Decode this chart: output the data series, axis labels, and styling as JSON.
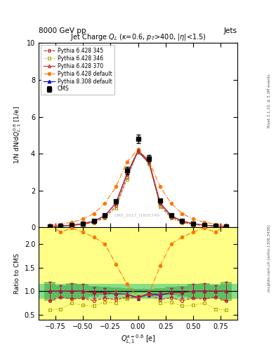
{
  "title": "Jet Charge $Q_L$ ($\\kappa$=0.6, $p_T$>400, |$\\eta$|<1.5)",
  "xlabel": "$Q_{L,1}^{\\kappa=0.6}$ [e]",
  "ylabel_main": "1/N dN/d$Q_{L,1}^{0.6}$ [1/e]",
  "ylabel_ratio": "Ratio to CMS",
  "header_left": "8000 GeV pp",
  "header_right": "Jets",
  "watermark": "mcplots.cern.ch [arXiv:1306.3436]",
  "rivet_label": "Rivet 3.1.10, ≥ 3.3M events",
  "analysis_id": "CMS_2017_I1605749",
  "x_centers": [
    -0.8,
    -0.7,
    -0.6,
    -0.5,
    -0.4,
    -0.3,
    -0.2,
    -0.1,
    0.0,
    0.1,
    0.2,
    0.3,
    0.4,
    0.5,
    0.6,
    0.7,
    0.8
  ],
  "cms_y": [
    0.05,
    0.08,
    0.12,
    0.2,
    0.35,
    0.65,
    1.4,
    3.1,
    4.8,
    3.75,
    1.45,
    0.65,
    0.35,
    0.2,
    0.12,
    0.08,
    0.05
  ],
  "cms_yerr": [
    0.01,
    0.01,
    0.02,
    0.03,
    0.04,
    0.06,
    0.1,
    0.18,
    0.22,
    0.18,
    0.1,
    0.06,
    0.04,
    0.03,
    0.02,
    0.01,
    0.01
  ],
  "p345_y": [
    0.04,
    0.07,
    0.1,
    0.17,
    0.28,
    0.55,
    1.15,
    2.7,
    4.15,
    3.5,
    1.2,
    0.56,
    0.28,
    0.17,
    0.1,
    0.07,
    0.04
  ],
  "p346_y": [
    0.03,
    0.05,
    0.09,
    0.14,
    0.24,
    0.5,
    1.05,
    2.6,
    4.1,
    3.42,
    1.1,
    0.5,
    0.24,
    0.14,
    0.09,
    0.05,
    0.03
  ],
  "p370_y": [
    0.05,
    0.08,
    0.12,
    0.2,
    0.34,
    0.63,
    1.32,
    2.9,
    4.18,
    3.58,
    1.35,
    0.63,
    0.34,
    0.2,
    0.12,
    0.08,
    0.05
  ],
  "pdef_y": [
    0.12,
    0.18,
    0.28,
    0.45,
    0.75,
    1.3,
    2.2,
    3.55,
    4.25,
    3.58,
    2.22,
    1.3,
    0.75,
    0.45,
    0.28,
    0.18,
    0.12
  ],
  "p8def_y": [
    0.05,
    0.08,
    0.12,
    0.2,
    0.34,
    0.63,
    1.32,
    2.9,
    4.1,
    3.5,
    1.32,
    0.63,
    0.34,
    0.2,
    0.12,
    0.08,
    0.05
  ],
  "color_345": "#cc2222",
  "color_346": "#aaaa00",
  "color_370": "#cc2222",
  "color_pdef": "#ff7700",
  "color_p8def": "#0000cc",
  "ylim_main": [
    0,
    10
  ],
  "ylim_ratio": [
    0.4,
    2.35
  ],
  "bg_yellow": "#ffff88",
  "bg_green": "#88dd88"
}
